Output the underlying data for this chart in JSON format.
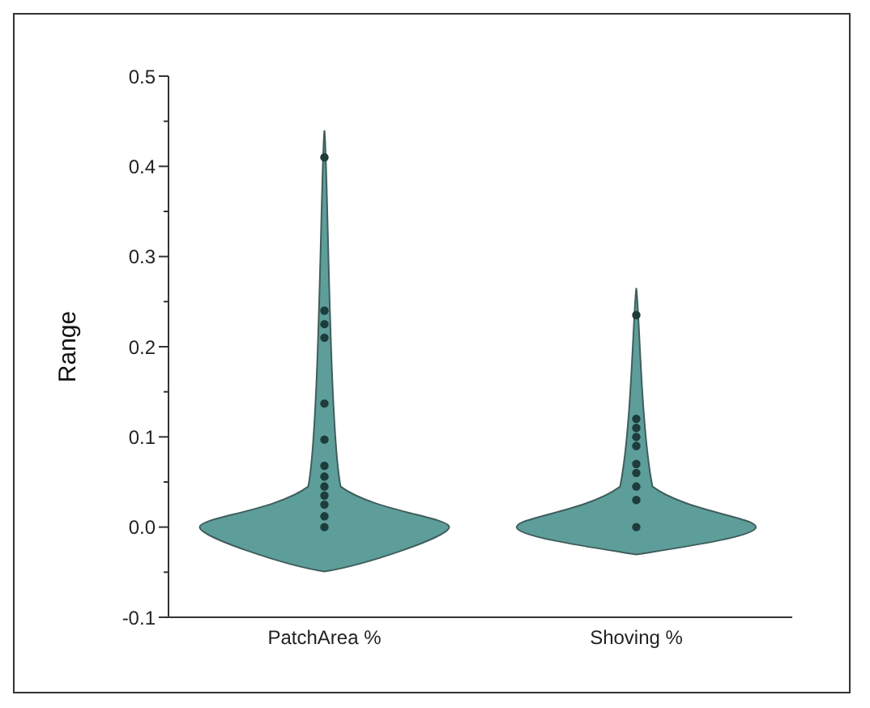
{
  "chart_data": {
    "type": "scatter",
    "categories": [
      "PatchArea %",
      "Shoving %"
    ],
    "ylabel": "Range",
    "ylim": [
      -0.1,
      0.5
    ],
    "yticks": [
      -0.1,
      {
        "value": 0,
        "label": "0.0"
      },
      0.1,
      0.2,
      0.3,
      0.4,
      0.5
    ],
    "grid": false,
    "legend": false,
    "marker": "circle",
    "series": [
      {
        "color": "#1e3c3c",
        "x": [
          "PatchArea %",
          "PatchArea %",
          "PatchArea %",
          "PatchArea %",
          "PatchArea %",
          "PatchArea %",
          "PatchArea %",
          "PatchArea %",
          "PatchArea %",
          "PatchArea %",
          "PatchArea %",
          "PatchArea %",
          "PatchArea %",
          "Shoving %",
          "Shoving %",
          "Shoving %",
          "Shoving %",
          "Shoving %",
          "Shoving %",
          "Shoving %",
          "Shoving %",
          "Shoving %",
          "Shoving %"
        ],
        "values": [
          0.41,
          0.24,
          0.225,
          0.21,
          0.137,
          0.097,
          0.068,
          0.056,
          0.045,
          0.035,
          0.025,
          0.012,
          0.0,
          0.235,
          0.12,
          0.11,
          0.1,
          0.09,
          0.07,
          0.06,
          0.045,
          0.03,
          0.0
        ]
      }
    ]
  }
}
